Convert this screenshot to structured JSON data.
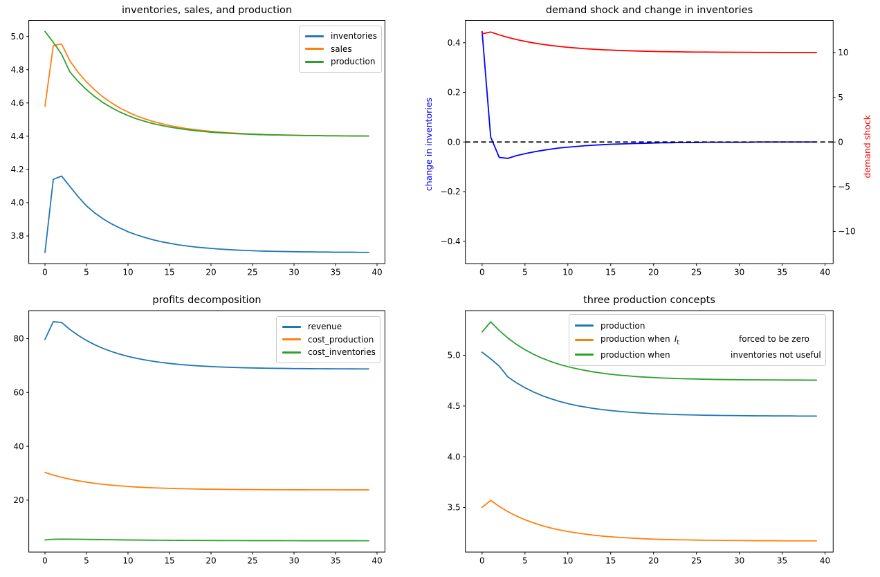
{
  "figure_background": "#ffffff",
  "chart_data": {
    "type": "line",
    "x": [
      0,
      1,
      2,
      3,
      4,
      5,
      6,
      7,
      8,
      9,
      10,
      11,
      12,
      13,
      14,
      15,
      16,
      17,
      18,
      19,
      20,
      21,
      22,
      23,
      24,
      25,
      26,
      27,
      28,
      29,
      30,
      31,
      32,
      33,
      34,
      35,
      36,
      37,
      38,
      39
    ],
    "xlim": [
      -1.95,
      40.95
    ],
    "xticks": {
      "values": [
        0,
        5,
        10,
        15,
        20,
        25,
        30,
        35,
        40
      ],
      "labels": [
        "0",
        "5",
        "10",
        "15",
        "20",
        "25",
        "30",
        "35",
        "40"
      ]
    },
    "grid": false,
    "panels": [
      {
        "title": "inventories, sales, and production",
        "ylim": [
          3.6335,
          5.0965
        ],
        "yticks": {
          "values": [
            3.8,
            4.0,
            4.2,
            4.4,
            4.6,
            4.8,
            5.0
          ],
          "labels": [
            "3.8",
            "4.0",
            "4.2",
            "4.4",
            "4.6",
            "4.8",
            "5.0"
          ]
        },
        "legend_loc": "upper right",
        "series": [
          {
            "name": "inventories",
            "color": "#1f77b4",
            "values": [
              3.7,
              4.14,
              4.16,
              4.098,
              4.036,
              3.981,
              3.938,
              3.903,
              3.873,
              3.848,
              3.825,
              3.807,
              3.791,
              3.777,
              3.765,
              3.756,
              3.747,
              3.74,
              3.734,
              3.729,
              3.725,
              3.721,
              3.718,
              3.715,
              3.713,
              3.711,
              3.709,
              3.708,
              3.707,
              3.706,
              3.705,
              3.704,
              3.704,
              3.703,
              3.703,
              3.702,
              3.702,
              3.702,
              3.701,
              3.701
            ]
          },
          {
            "name": "sales",
            "color": "#ff7f0e",
            "values": [
              4.58,
              4.945,
              4.955,
              4.853,
              4.784,
              4.727,
              4.678,
              4.636,
              4.601,
              4.57,
              4.545,
              4.523,
              4.505,
              4.489,
              4.476,
              4.464,
              4.455,
              4.446,
              4.44,
              4.434,
              4.429,
              4.424,
              4.421,
              4.418,
              4.415,
              4.413,
              4.411,
              4.409,
              4.408,
              4.407,
              4.406,
              4.405,
              4.404,
              4.404,
              4.403,
              4.403,
              4.402,
              4.402,
              4.402,
              4.401
            ]
          },
          {
            "name": "production",
            "color": "#2ca02c",
            "values": [
              5.03,
              4.965,
              4.893,
              4.787,
              4.729,
              4.68,
              4.638,
              4.602,
              4.572,
              4.546,
              4.524,
              4.505,
              4.49,
              4.476,
              4.465,
              4.455,
              4.447,
              4.44,
              4.434,
              4.429,
              4.424,
              4.421,
              4.418,
              4.415,
              4.413,
              4.411,
              4.409,
              4.408,
              4.407,
              4.406,
              4.405,
              4.404,
              4.403,
              4.403,
              4.402,
              4.402,
              4.402,
              4.401,
              4.401,
              4.401
            ]
          }
        ]
      },
      {
        "title": "demand shock and change in inventories",
        "ylim_left": [
          -0.49,
          0.49
        ],
        "ylim_right": [
          -13.6,
          13.6
        ],
        "yticks_left": {
          "values": [
            -0.4,
            -0.2,
            0.0,
            0.2,
            0.4
          ],
          "labels": [
            "−0.4",
            "−0.2",
            "0.0",
            "0.2",
            "0.4"
          ]
        },
        "yticks_right": {
          "values": [
            -10,
            -5,
            0,
            5,
            10
          ],
          "labels": [
            "−10",
            "−5",
            "0",
            "5",
            "10"
          ]
        },
        "ylabel_left": {
          "text": "change in inventories",
          "color": "#0000ff"
        },
        "ylabel_right": {
          "text": "demand shock",
          "color": "#ff0000"
        },
        "series": [
          {
            "name": "change in inventories",
            "axis": "left",
            "color": "#0000ff",
            "values": [
              0.445,
              0.02,
              -0.062,
              -0.066,
              -0.055,
              -0.047,
              -0.04,
              -0.034,
              -0.029,
              -0.024,
              -0.021,
              -0.018,
              -0.015,
              -0.013,
              -0.011,
              -0.009,
              -0.008,
              -0.007,
              -0.006,
              -0.005,
              -0.004,
              -0.003,
              -0.003,
              -0.002,
              -0.002,
              -0.002,
              -0.001,
              -0.001,
              -0.001,
              -0.001,
              -0.001,
              -0.001,
              0.0,
              0.0,
              0.0,
              0.0,
              0.0,
              0.0,
              0.0,
              0.0
            ]
          },
          {
            "name": "zero line",
            "axis": "left",
            "color": "#000000",
            "style": "dashed",
            "hline": 0.0
          },
          {
            "name": "demand shock",
            "axis": "right",
            "color": "#ff0000",
            "values": [
              12.1,
              12.3,
              11.98,
              11.7,
              11.46,
              11.26,
              11.08,
              10.93,
              10.8,
              10.69,
              10.59,
              10.51,
              10.44,
              10.38,
              10.32,
              10.28,
              10.24,
              10.21,
              10.18,
              10.15,
              10.13,
              10.11,
              10.1,
              10.09,
              10.07,
              10.06,
              10.06,
              10.05,
              10.04,
              10.04,
              10.03,
              10.03,
              10.02,
              10.02,
              10.02,
              10.01,
              10.01,
              10.01,
              10.01,
              10.01
            ]
          }
        ]
      },
      {
        "title": "profits decomposition",
        "ylim": [
          0.7,
          90.4
        ],
        "yticks": {
          "values": [
            20,
            40,
            60,
            80
          ],
          "labels": [
            "20",
            "40",
            "60",
            "80"
          ]
        },
        "legend_loc": "upper right",
        "series": [
          {
            "name": "revenue",
            "color": "#1f77b4",
            "values": [
              79.7,
              86.3,
              86.0,
              83.41,
              81.2,
              79.32,
              77.73,
              76.38,
              75.22,
              74.25,
              73.41,
              72.71,
              72.11,
              71.6,
              71.16,
              70.79,
              70.48,
              70.21,
              69.98,
              69.79,
              69.63,
              69.49,
              69.37,
              69.27,
              69.18,
              69.11,
              69.05,
              69.0,
              68.95,
              68.92,
              68.88,
              68.86,
              68.83,
              68.81,
              68.8,
              68.78,
              68.77,
              68.76,
              68.75,
              68.74
            ]
          },
          {
            "name": "cost_production",
            "color": "#ff7f0e",
            "values": [
              30.3,
              29.33,
              28.5,
              27.79,
              27.19,
              26.68,
              26.25,
              25.88,
              25.57,
              25.3,
              25.08,
              24.88,
              24.72,
              24.58,
              24.47,
              24.37,
              24.28,
              24.21,
              24.15,
              24.1,
              24.06,
              24.02,
              23.99,
              23.96,
              23.94,
              23.92,
              23.9,
              23.89,
              23.87,
              23.86,
              23.85,
              23.85,
              23.84,
              23.84,
              23.83,
              23.83,
              23.82,
              23.82,
              23.82,
              23.81
            ]
          },
          {
            "name": "cost_inventories",
            "color": "#2ca02c",
            "values": [
              5.2,
              5.45,
              5.5,
              5.48,
              5.45,
              5.42,
              5.38,
              5.33,
              5.29,
              5.25,
              5.21,
              5.18,
              5.15,
              5.12,
              5.1,
              5.08,
              5.06,
              5.04,
              5.03,
              5.02,
              5.0,
              4.99,
              4.98,
              4.98,
              4.97,
              4.96,
              4.96,
              4.95,
              4.95,
              4.94,
              4.94,
              4.93,
              4.93,
              4.93,
              4.92,
              4.92,
              4.92,
              4.92,
              4.91,
              4.91
            ]
          }
        ]
      },
      {
        "title": "three production concepts",
        "ylim": [
          3.06,
          5.44
        ],
        "yticks": {
          "values": [
            3.5,
            4.0,
            4.5,
            5.0
          ],
          "labels": [
            "3.5",
            "4.0",
            "4.5",
            "5.0"
          ]
        },
        "legend_loc": "upper center",
        "series": [
          {
            "name": "production",
            "color": "#1f77b4",
            "values": [
              5.03,
              4.965,
              4.893,
              4.787,
              4.729,
              4.68,
              4.638,
              4.602,
              4.572,
              4.546,
              4.524,
              4.505,
              4.49,
              4.476,
              4.465,
              4.455,
              4.447,
              4.44,
              4.434,
              4.429,
              4.424,
              4.421,
              4.418,
              4.415,
              4.413,
              4.411,
              4.409,
              4.408,
              4.407,
              4.406,
              4.405,
              4.404,
              4.403,
              4.403,
              4.402,
              4.402,
              4.402,
              4.401,
              4.401,
              4.401
            ]
          },
          {
            "name": "production when I_t forced to be zero",
            "color": "#ff7f0e",
            "values": [
              3.5,
              3.57,
              3.51,
              3.459,
              3.416,
              3.379,
              3.348,
              3.321,
              3.298,
              3.279,
              3.263,
              3.249,
              3.237,
              3.227,
              3.218,
              3.211,
              3.205,
              3.2,
              3.195,
              3.191,
              3.188,
              3.185,
              3.183,
              3.181,
              3.18,
              3.178,
              3.177,
              3.176,
              3.175,
              3.174,
              3.174,
              3.173,
              3.172,
              3.172,
              3.172,
              3.171,
              3.171,
              3.171,
              3.171,
              3.171
            ]
          },
          {
            "name": "production when inventories not useful",
            "color": "#2ca02c",
            "values": [
              5.23,
              5.33,
              5.244,
              5.17,
              5.108,
              5.055,
              5.01,
              4.971,
              4.939,
              4.911,
              4.888,
              4.868,
              4.851,
              4.836,
              4.824,
              4.813,
              4.804,
              4.797,
              4.79,
              4.785,
              4.78,
              4.776,
              4.773,
              4.77,
              4.768,
              4.766,
              4.764,
              4.762,
              4.761,
              4.76,
              4.759,
              4.758,
              4.758,
              4.757,
              4.757,
              4.756,
              4.756,
              4.756,
              4.755,
              4.755
            ]
          }
        ]
      }
    ]
  },
  "legends": {
    "top_left": {
      "items": [
        {
          "label": "inventories",
          "color": "#1f77b4"
        },
        {
          "label": "sales",
          "color": "#ff7f0e"
        },
        {
          "label": "production",
          "color": "#2ca02c"
        }
      ]
    },
    "bottom_left": {
      "items": [
        {
          "label": "revenue",
          "color": "#1f77b4"
        },
        {
          "label": "cost_production",
          "color": "#ff7f0e"
        },
        {
          "label": "cost_inventories",
          "color": "#2ca02c"
        }
      ]
    },
    "bottom_right": {
      "items": [
        {
          "label": "production",
          "color": "#1f77b4"
        },
        {
          "pre": "production when ",
          "math_var": "I",
          "math_sub": "t",
          "post": "forced to be zero",
          "color": "#ff7f0e"
        },
        {
          "pre": "production when",
          "post": "inventories not useful",
          "color": "#2ca02c"
        }
      ]
    }
  }
}
